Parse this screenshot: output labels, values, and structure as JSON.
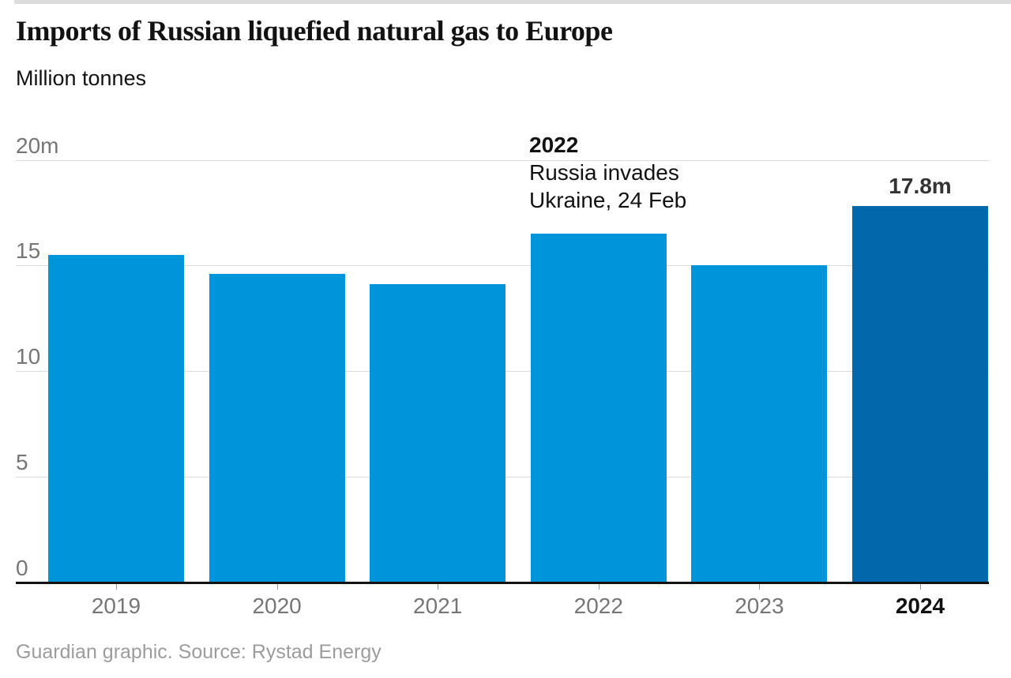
{
  "page": {
    "title": "Imports of Russian liquefied natural gas to Europe",
    "subtitle": "Million tonnes",
    "source": "Guardian graphic. Source: Rystad Energy"
  },
  "chart_data": {
    "type": "bar",
    "title": "Imports of Russian liquefied natural gas to Europe",
    "subtitle": "Million tonnes",
    "unit": "million tonnes",
    "categories": [
      "2019",
      "2020",
      "2021",
      "2022",
      "2023",
      "2024"
    ],
    "values": [
      15.5,
      14.6,
      14.1,
      16.5,
      15.0,
      17.8
    ],
    "ylim": [
      0,
      20
    ],
    "yticks": [
      {
        "value": 0,
        "label": "0"
      },
      {
        "value": 5,
        "label": "5"
      },
      {
        "value": 10,
        "label": "10"
      },
      {
        "value": 15,
        "label": "15"
      },
      {
        "value": 20,
        "label": "20m"
      }
    ],
    "grid": true,
    "legend": false,
    "colors": {
      "bar_default": "#0095db",
      "bar_highlight": "#0368ab",
      "gridline": "#dcdcdc",
      "axis": "#121212",
      "tick_label": "#767676"
    },
    "highlight_index": 5,
    "highlight_label": "17.8m",
    "xtick_highlight_index": 5,
    "annotation": {
      "year": "2022",
      "lines": [
        "Russia invades",
        "Ukraine, 24 Feb"
      ]
    },
    "source": "Guardian graphic. Source: Rystad Energy"
  }
}
